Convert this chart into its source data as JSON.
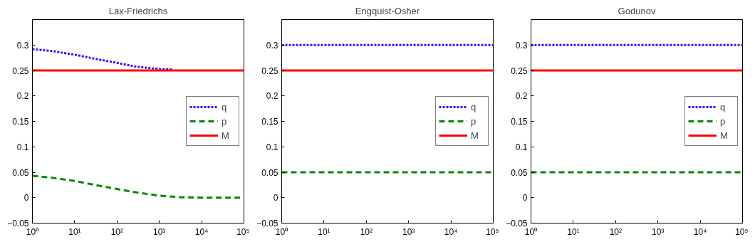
{
  "chart_data": [
    {
      "type": "line",
      "title": "Lax-Friedrichs",
      "log": "x",
      "xlim": [
        1,
        100000
      ],
      "ylim": [
        -0.05,
        0.35
      ],
      "xticks": [
        {
          "value": 1,
          "label": "10⁰"
        },
        {
          "value": 10,
          "label": "10¹"
        },
        {
          "value": 100,
          "label": "10²"
        },
        {
          "value": 1000,
          "label": "10³"
        },
        {
          "value": 10000,
          "label": "10⁴"
        },
        {
          "value": 100000,
          "label": "10⁵"
        }
      ],
      "yticks": [
        -0.05,
        0,
        0.05,
        0.1,
        0.15,
        0.2,
        0.25,
        0.3
      ],
      "grid": false,
      "legend": "right",
      "series": [
        {
          "name": "q",
          "color": "#3311ff",
          "line_style": "dotted",
          "x": [
            1,
            3,
            10,
            30,
            100,
            300,
            1000,
            2000
          ],
          "values": [
            0.292,
            0.288,
            0.281,
            0.273,
            0.265,
            0.257,
            0.253,
            0.252
          ]
        },
        {
          "name": "p",
          "color": "#008800",
          "line_style": "dashed",
          "x": [
            1,
            3,
            10,
            30,
            100,
            300,
            1000,
            3000,
            10000,
            100000
          ],
          "values": [
            0.043,
            0.039,
            0.033,
            0.025,
            0.017,
            0.01,
            0.004,
            0.001,
            0,
            0
          ]
        },
        {
          "name": "M",
          "color": "#ff0000",
          "line_style": "solid",
          "x": [
            1,
            100000
          ],
          "values": [
            0.25,
            0.25
          ]
        }
      ]
    },
    {
      "type": "line",
      "title": "Engquist-Osher",
      "log": "x",
      "xlim": [
        1,
        100000
      ],
      "ylim": [
        -0.05,
        0.35
      ],
      "xticks": [
        {
          "value": 1,
          "label": "10⁰"
        },
        {
          "value": 10,
          "label": "10¹"
        },
        {
          "value": 100,
          "label": "10²"
        },
        {
          "value": 1000,
          "label": "10³"
        },
        {
          "value": 10000,
          "label": "10⁴"
        },
        {
          "value": 100000,
          "label": "10⁵"
        }
      ],
      "yticks": [
        -0.05,
        0,
        0.05,
        0.1,
        0.15,
        0.2,
        0.25,
        0.3
      ],
      "grid": false,
      "legend": "right",
      "series": [
        {
          "name": "q",
          "color": "#3311ff",
          "line_style": "dotted",
          "x": [
            1,
            100000
          ],
          "values": [
            0.3,
            0.3
          ]
        },
        {
          "name": "p",
          "color": "#008800",
          "line_style": "dashed",
          "x": [
            1,
            100000
          ],
          "values": [
            0.05,
            0.05
          ]
        },
        {
          "name": "M",
          "color": "#ff0000",
          "line_style": "solid",
          "x": [
            1,
            100000
          ],
          "values": [
            0.25,
            0.25
          ]
        }
      ]
    },
    {
      "type": "line",
      "title": "Godunov",
      "log": "x",
      "xlim": [
        1,
        100000
      ],
      "ylim": [
        -0.05,
        0.35
      ],
      "xticks": [
        {
          "value": 1,
          "label": "10⁰"
        },
        {
          "value": 10,
          "label": "10¹"
        },
        {
          "value": 100,
          "label": "10²"
        },
        {
          "value": 1000,
          "label": "10³"
        },
        {
          "value": 10000,
          "label": "10⁴"
        },
        {
          "value": 100000,
          "label": "10⁵"
        }
      ],
      "yticks": [
        -0.05,
        0,
        0.05,
        0.1,
        0.15,
        0.2,
        0.25,
        0.3
      ],
      "grid": false,
      "legend": "right",
      "series": [
        {
          "name": "q",
          "color": "#3311ff",
          "line_style": "dotted",
          "x": [
            1,
            100000
          ],
          "values": [
            0.3,
            0.3
          ]
        },
        {
          "name": "p",
          "color": "#008800",
          "line_style": "dashed",
          "x": [
            1,
            100000
          ],
          "values": [
            0.05,
            0.05
          ]
        },
        {
          "name": "M",
          "color": "#ff0000",
          "line_style": "solid",
          "x": [
            1,
            100000
          ],
          "values": [
            0.25,
            0.25
          ]
        }
      ]
    }
  ]
}
